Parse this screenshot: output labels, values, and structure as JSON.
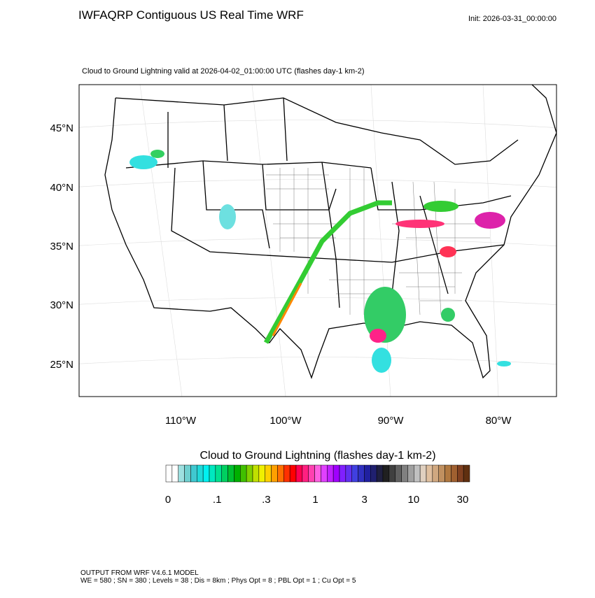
{
  "header": {
    "title": "IWFAQRP Contiguous US Real Time WRF",
    "init": "Init: 2026-03-31_00:00:00"
  },
  "map": {
    "subtitle": "Cloud to Ground Lightning valid at 2026-04-02_01:00:00 UTC   (flashes day-1 km-2)",
    "lat_labels": [
      "45°N",
      "40°N",
      "35°N",
      "30°N",
      "25°N"
    ],
    "lon_labels": [
      "110°W",
      "100°W",
      "90°W",
      "80°W"
    ]
  },
  "colorbar": {
    "title": "Cloud to Ground Lightning  (flashes day-1 km-2)",
    "labels": [
      "0",
      ".1",
      ".3",
      "1",
      "3",
      "10",
      "30"
    ],
    "colors": [
      "#ffffff",
      "#ffffff",
      "#9ee0e0",
      "#70d0d0",
      "#40c8d0",
      "#20d8d8",
      "#00f0f0",
      "#00e8c0",
      "#00e090",
      "#00d060",
      "#00c030",
      "#00b000",
      "#40c000",
      "#80d000",
      "#c0e000",
      "#f0f000",
      "#ffd000",
      "#ffa000",
      "#ff7000",
      "#ff3000",
      "#ff0000",
      "#ff0050",
      "#ff2080",
      "#ff40b0",
      "#ff60e0",
      "#e040ff",
      "#c020ff",
      "#a000ff",
      "#8020ff",
      "#6030f0",
      "#4040e0",
      "#3030c0",
      "#2020a0",
      "#202070",
      "#202040",
      "#202020",
      "#404040",
      "#606060",
      "#808080",
      "#a0a0a0",
      "#c0c0c0",
      "#e0d0c0",
      "#e0c0a0",
      "#d0a880",
      "#c09060",
      "#b07840",
      "#a06030",
      "#804020",
      "#603010"
    ]
  },
  "footer": {
    "lines": [
      "OUTPUT FROM WRF V4.6.1 MODEL",
      "WE = 580 ; SN = 380 ; Levels = 38 ; Dis = 8km ; Phys Opt = 8 ; PBL Opt = 1 ; Cu Opt = 5"
    ]
  }
}
